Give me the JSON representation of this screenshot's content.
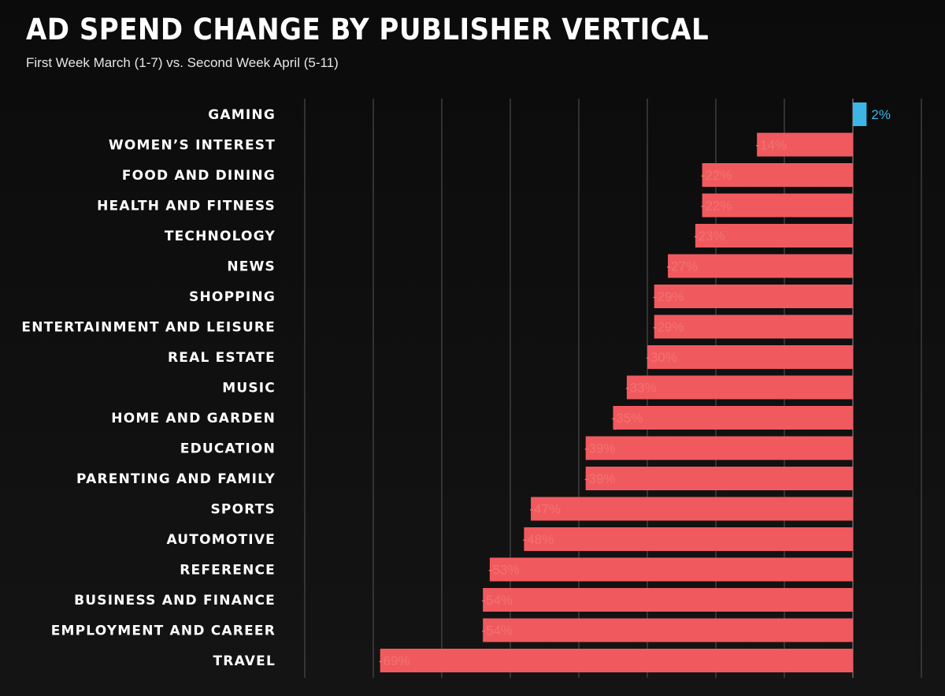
{
  "title": "AD SPEND CHANGE BY PUBLISHER VERTICAL",
  "subtitle": "First Week March (1-7) vs. Second Week April (5-11)",
  "colors": {
    "negative": "#f05a5f",
    "positive": "#3bb6e6",
    "negative_label": "#f2726f",
    "positive_label": "#3bb6e6",
    "grid": "#4a4a4a"
  },
  "chart_data": {
    "type": "bar",
    "orientation": "horizontal",
    "title": "AD SPEND CHANGE BY PUBLISHER VERTICAL",
    "subtitle": "First Week March (1-7) vs. Second Week April (5-11)",
    "categories": [
      "GAMING",
      "WOMEN’S INTEREST",
      "FOOD AND DINING",
      "HEALTH AND FITNESS",
      "TECHNOLOGY",
      "NEWS",
      "SHOPPING",
      "ENTERTAINMENT AND LEISURE",
      "REAL ESTATE",
      "MUSIC",
      "HOME AND GARDEN",
      "EDUCATION",
      "PARENTING AND FAMILY",
      "SPORTS",
      "AUTOMOTIVE",
      "REFERENCE",
      "BUSINESS AND FINANCE",
      "EMPLOYMENT AND CAREER",
      "TRAVEL"
    ],
    "values": [
      2,
      -14,
      -22,
      -22,
      -23,
      -27,
      -29,
      -29,
      -30,
      -33,
      -35,
      -39,
      -39,
      -47,
      -48,
      -53,
      -54,
      -54,
      -69
    ],
    "value_labels": [
      "2%",
      "-14%",
      "-22%",
      "-22%",
      "-23%",
      "-27%",
      "-29%",
      "-29%",
      "-30%",
      "-33%",
      "-35%",
      "-39%",
      "-39%",
      "-47%",
      "-48%",
      "-53%",
      "-54%",
      "-54%",
      "-69%"
    ],
    "xlim": [
      -80,
      10
    ],
    "grid": true,
    "gridline_values": [
      -80,
      -70,
      -60,
      -50,
      -40,
      -30,
      -20,
      -10,
      0,
      10
    ],
    "xlabel": "",
    "ylabel": ""
  }
}
